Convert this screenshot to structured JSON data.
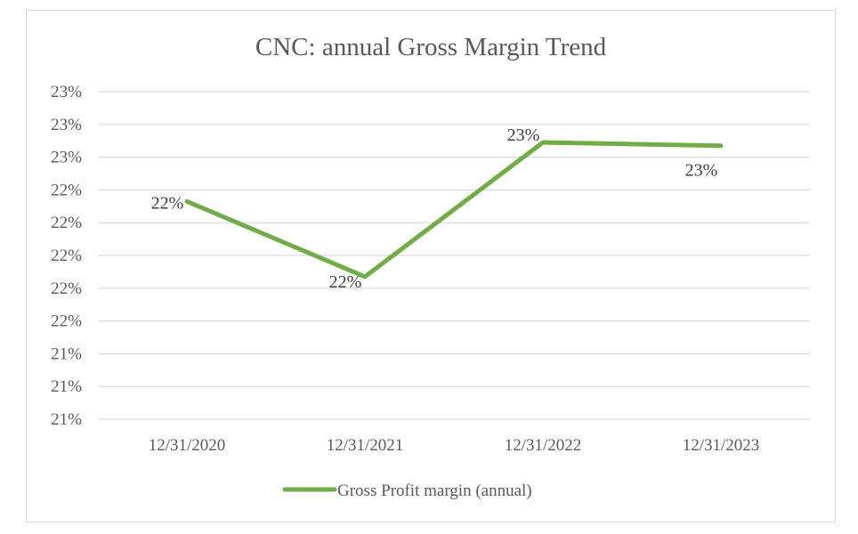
{
  "chart_data": {
    "type": "line",
    "title": "CNC: annual Gross Margin Trend",
    "xlabel": "",
    "ylabel": "",
    "categories": [
      "12/31/2020",
      "12/31/2021",
      "12/31/2022",
      "12/31/2023"
    ],
    "series": [
      {
        "name": "Gross Profit margin (annual)",
        "values": [
          22.33,
          21.87,
          22.69,
          22.67
        ],
        "data_labels": [
          "22%",
          "22%",
          "23%",
          "23%"
        ],
        "color": "#70ad47"
      }
    ],
    "ylim": [
      21.0,
      23.0
    ],
    "y_ticks": [
      21.0,
      21.2,
      21.4,
      21.6,
      21.8,
      22.0,
      22.2,
      22.4,
      22.6,
      22.8,
      23.0
    ],
    "y_tick_labels": [
      "21%",
      "21%",
      "21%",
      "22%",
      "22%",
      "22%",
      "22%",
      "22%",
      "23%",
      "23%",
      "23%"
    ],
    "grid": true,
    "legend_position": "bottom",
    "colors": {
      "series": "#70ad47",
      "grid": "#d9d9d9",
      "text": "#595959"
    }
  }
}
